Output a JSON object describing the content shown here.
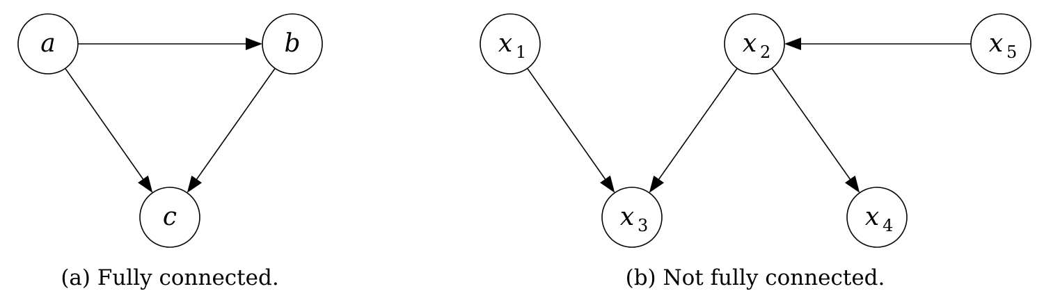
{
  "panels": [
    {
      "id": "a",
      "caption": "(a) Fully connected.",
      "nodes": [
        {
          "id": "a",
          "label": "a",
          "sub": ""
        },
        {
          "id": "b",
          "label": "b",
          "sub": ""
        },
        {
          "id": "c",
          "label": "c",
          "sub": ""
        }
      ],
      "edges": [
        {
          "from": "a",
          "to": "b"
        },
        {
          "from": "a",
          "to": "c"
        },
        {
          "from": "b",
          "to": "c"
        }
      ]
    },
    {
      "id": "b",
      "caption": "(b) Not fully connected.",
      "nodes": [
        {
          "id": "x1",
          "label": "x",
          "sub": "1"
        },
        {
          "id": "x2",
          "label": "x",
          "sub": "2"
        },
        {
          "id": "x3",
          "label": "x",
          "sub": "3"
        },
        {
          "id": "x4",
          "label": "x",
          "sub": "4"
        },
        {
          "id": "x5",
          "label": "x",
          "sub": "5"
        }
      ],
      "edges": [
        {
          "from": "x5",
          "to": "x2"
        },
        {
          "from": "x1",
          "to": "x3"
        },
        {
          "from": "x2",
          "to": "x3"
        },
        {
          "from": "x2",
          "to": "x4"
        }
      ]
    }
  ]
}
